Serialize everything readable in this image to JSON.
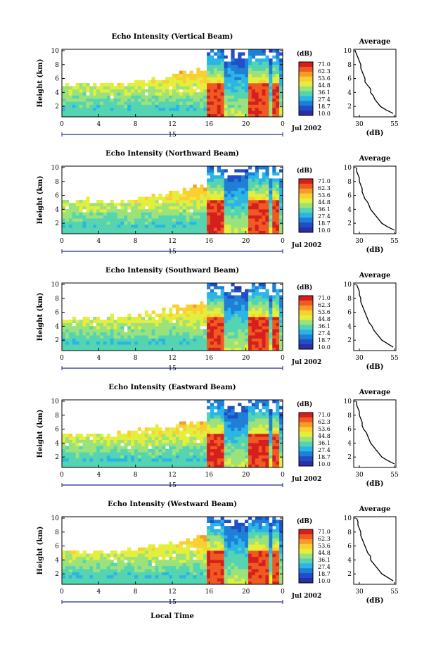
{
  "figure": {
    "xlabel_bottom": "Local Time",
    "colorbar_unit": "(dB)",
    "colorbar_ticks": [
      "71.0",
      "62.3",
      "53.6",
      "44.8",
      "36.1",
      "27.4",
      "18.7",
      "10.0"
    ],
    "colorbar_colors": [
      "#d51e1e",
      "#ef5a21",
      "#f79a2a",
      "#f9cf32",
      "#e4ee3c",
      "#9ce27a",
      "#55d4b2",
      "#2ab5e6",
      "#1e7fd6",
      "#1f4ec8",
      "#2a2ea7"
    ],
    "date_label": "Jul 2002",
    "day_label": "15",
    "avg_title": "Average",
    "avg_xlabel": "(dB)"
  },
  "chart_data": [
    {
      "type": "heatmap",
      "title": "Echo Intensity (Vertical Beam)",
      "ylabel": "Height (km)",
      "x_ticks": [
        "0",
        "4",
        "8",
        "12",
        "16",
        "20",
        "0"
      ],
      "y_ticks": [
        "2",
        "4",
        "6",
        "8",
        "10"
      ],
      "xlim": [
        0,
        24
      ],
      "ylim": [
        0.5,
        10.2
      ],
      "colorbar_range_db": [
        10.0,
        71.0
      ],
      "average_profile": {
        "x_ticks": [
          "30",
          "55"
        ],
        "xlim": [
          26,
          56
        ],
        "y_ticks": [
          "2",
          "4",
          "6",
          "8",
          "10"
        ],
        "height_km": [
          1.0,
          1.5,
          2.0,
          2.5,
          3.0,
          3.5,
          4.0,
          4.5,
          5.0,
          5.5,
          6.0,
          6.5,
          7.0,
          7.5,
          8.0,
          8.5,
          9.0,
          9.5,
          10.0
        ],
        "db": [
          54,
          49,
          45,
          43,
          41,
          40,
          38,
          38,
          36,
          34,
          34,
          33,
          32,
          31,
          31,
          30,
          29,
          28,
          27
        ]
      }
    },
    {
      "type": "heatmap",
      "title": "Echo Intensity (Northward Beam)",
      "ylabel": "Height (km)",
      "x_ticks": [
        "0",
        "4",
        "8",
        "12",
        "16",
        "20",
        "0"
      ],
      "y_ticks": [
        "2",
        "4",
        "6",
        "8",
        "10"
      ],
      "xlim": [
        0,
        24
      ],
      "ylim": [
        0.5,
        10.2
      ],
      "colorbar_range_db": [
        10.0,
        71.0
      ],
      "average_profile": {
        "x_ticks": [
          "30",
          "55"
        ],
        "xlim": [
          26,
          56
        ],
        "y_ticks": [
          "2",
          "4",
          "6",
          "8",
          "10"
        ],
        "height_km": [
          1.0,
          1.5,
          2.0,
          2.5,
          3.0,
          3.5,
          4.0,
          4.5,
          5.0,
          5.5,
          6.0,
          6.5,
          7.0,
          7.5,
          8.0,
          8.5,
          9.0,
          9.5,
          10.0
        ],
        "db": [
          55,
          50,
          46,
          44,
          42,
          40,
          38,
          37,
          36,
          34,
          33,
          32,
          32,
          31,
          30,
          30,
          29,
          28,
          28
        ]
      }
    },
    {
      "type": "heatmap",
      "title": "Echo Intensity (Southward Beam)",
      "ylabel": "Height (km)",
      "x_ticks": [
        "0",
        "4",
        "8",
        "12",
        "16",
        "20",
        "0"
      ],
      "y_ticks": [
        "2",
        "4",
        "6",
        "8",
        "10"
      ],
      "xlim": [
        0,
        24
      ],
      "ylim": [
        0.5,
        10.2
      ],
      "colorbar_range_db": [
        10.0,
        71.0
      ],
      "average_profile": {
        "x_ticks": [
          "30",
          "55"
        ],
        "xlim": [
          26,
          56
        ],
        "y_ticks": [
          "2",
          "4",
          "6",
          "8",
          "10"
        ],
        "height_km": [
          1.0,
          1.5,
          2.0,
          2.5,
          3.0,
          3.5,
          4.0,
          4.5,
          5.0,
          5.5,
          6.0,
          6.5,
          7.0,
          7.5,
          8.0,
          8.5,
          9.0,
          9.5,
          10.0
        ],
        "db": [
          54,
          50,
          46,
          44,
          42,
          40,
          39,
          37,
          36,
          35,
          34,
          33,
          32,
          31,
          31,
          30,
          30,
          29,
          28
        ]
      }
    },
    {
      "type": "heatmap",
      "title": "Echo Intensity (Eastward Beam)",
      "ylabel": "Height (km)",
      "x_ticks": [
        "0",
        "4",
        "8",
        "12",
        "16",
        "20",
        "0"
      ],
      "y_ticks": [
        "2",
        "4",
        "6",
        "8",
        "10"
      ],
      "xlim": [
        0,
        24
      ],
      "ylim": [
        0.5,
        10.2
      ],
      "colorbar_range_db": [
        10.0,
        71.0
      ],
      "average_profile": {
        "x_ticks": [
          "30",
          "55"
        ],
        "xlim": [
          26,
          56
        ],
        "y_ticks": [
          "2",
          "4",
          "6",
          "8",
          "10"
        ],
        "height_km": [
          1.0,
          1.5,
          2.0,
          2.5,
          3.0,
          3.5,
          4.0,
          4.5,
          5.0,
          5.5,
          6.0,
          6.5,
          7.0,
          7.5,
          8.0,
          8.5,
          9.0,
          9.5,
          10.0
        ],
        "db": [
          55,
          50,
          46,
          44,
          42,
          40,
          38,
          37,
          36,
          35,
          33,
          32,
          32,
          31,
          30,
          30,
          29,
          28,
          28
        ]
      }
    },
    {
      "type": "heatmap",
      "title": "Echo Intensity (Westward Beam)",
      "ylabel": "Height (km)",
      "x_ticks": [
        "0",
        "4",
        "8",
        "12",
        "16",
        "20",
        "0"
      ],
      "y_ticks": [
        "2",
        "4",
        "6",
        "8",
        "10"
      ],
      "xlim": [
        0,
        24
      ],
      "ylim": [
        0.5,
        10.2
      ],
      "colorbar_range_db": [
        10.0,
        71.0
      ],
      "average_profile": {
        "x_ticks": [
          "30",
          "55"
        ],
        "xlim": [
          26,
          56
        ],
        "y_ticks": [
          "2",
          "4",
          "6",
          "8",
          "10"
        ],
        "height_km": [
          1.0,
          1.5,
          2.0,
          2.5,
          3.0,
          3.5,
          4.0,
          4.5,
          5.0,
          5.5,
          6.0,
          6.5,
          7.0,
          7.5,
          8.0,
          8.5,
          9.0,
          9.5,
          10.0
        ],
        "db": [
          54,
          50,
          46,
          44,
          42,
          40,
          38,
          38,
          36,
          35,
          34,
          33,
          32,
          31,
          31,
          30,
          29,
          29,
          28
        ]
      }
    }
  ]
}
